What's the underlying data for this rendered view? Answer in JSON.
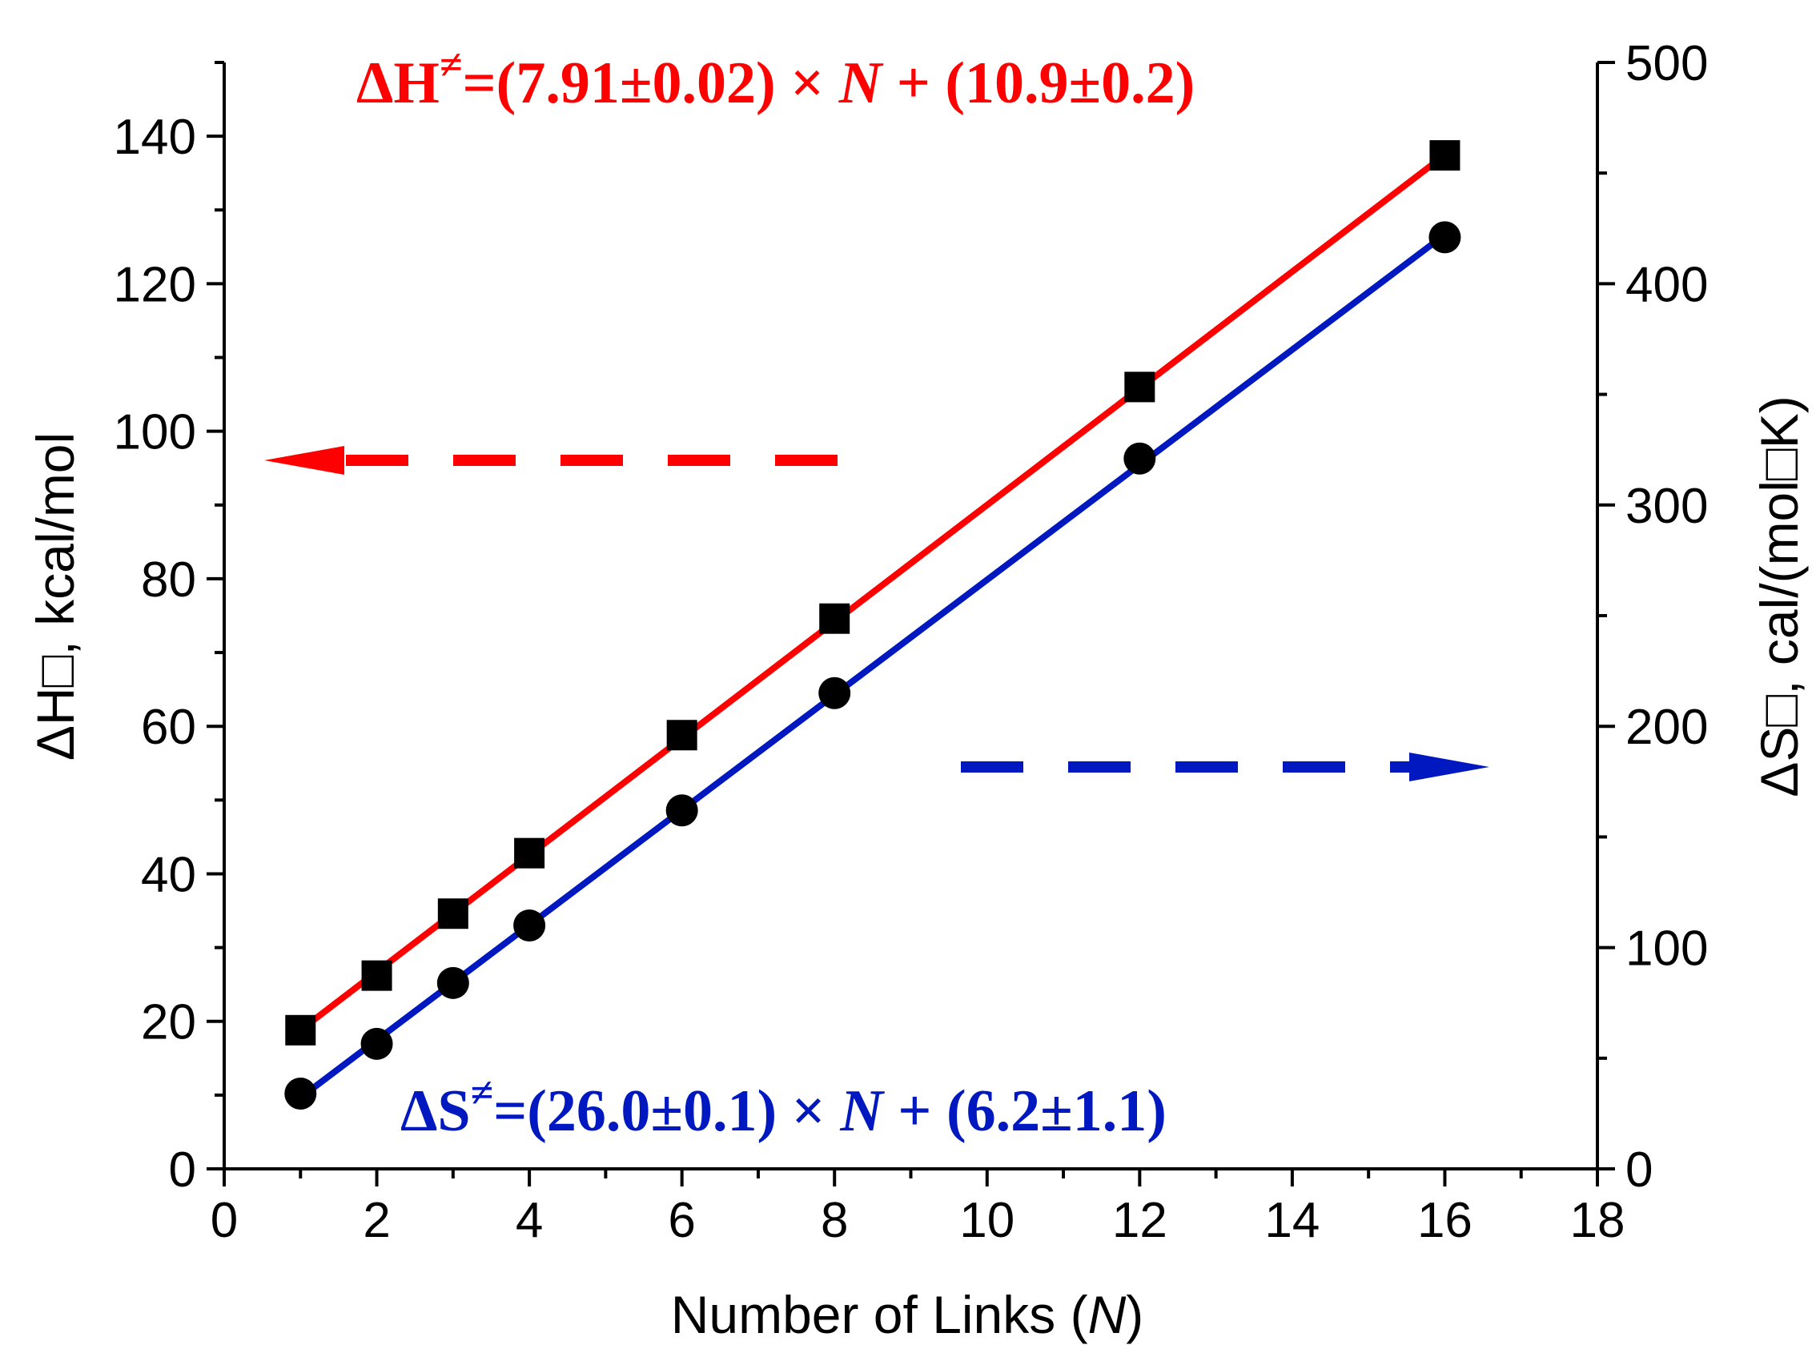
{
  "chart_data": {
    "type": "scatter",
    "x": [
      1,
      2,
      3,
      4,
      6,
      8,
      12,
      16
    ],
    "xlabel_prefix": "Number of Links (",
    "xlabel_var": "N",
    "xlabel_suffix": ")",
    "xlim": [
      0,
      18
    ],
    "xticks": [
      0,
      2,
      4,
      6,
      8,
      10,
      12,
      14,
      16,
      18
    ],
    "y_left": {
      "label": "ΔH□, kcal/mol",
      "lim": [
        0,
        150
      ],
      "ticks": [
        0,
        20,
        40,
        60,
        80,
        100,
        120,
        140
      ]
    },
    "y_right": {
      "label": "ΔS□, cal/(mol□K)",
      "lim": [
        0,
        500
      ],
      "ticks": [
        0,
        100,
        200,
        300,
        400,
        500
      ]
    },
    "series": [
      {
        "axis": "left",
        "marker": "square",
        "values": [
          18.8,
          26.2,
          34.6,
          42.8,
          58.8,
          74.6,
          106.0,
          137.4
        ],
        "fit": {
          "slope": 7.91,
          "intercept": 10.9
        },
        "color": "#ff0000",
        "equation": {
          "lhs": "ΔH",
          "sup": "≠",
          "mid": "=(7.91±0.02) × ",
          "var": "N",
          "tail": " + (10.9±0.2)"
        },
        "arrow_direction": "left"
      },
      {
        "axis": "right",
        "marker": "circle",
        "values": [
          34.0,
          56.5,
          84.0,
          110.0,
          162.0,
          215.0,
          321.0,
          421.0
        ],
        "fit": {
          "slope": 26.0,
          "intercept": 6.2
        },
        "color": "#0018c0",
        "equation": {
          "lhs": "ΔS",
          "sup": "≠",
          "mid": "=(26.0±0.1) × ",
          "var": "N",
          "tail": " + (6.2±1.1)"
        },
        "arrow_direction": "right"
      }
    ],
    "grid": false
  }
}
